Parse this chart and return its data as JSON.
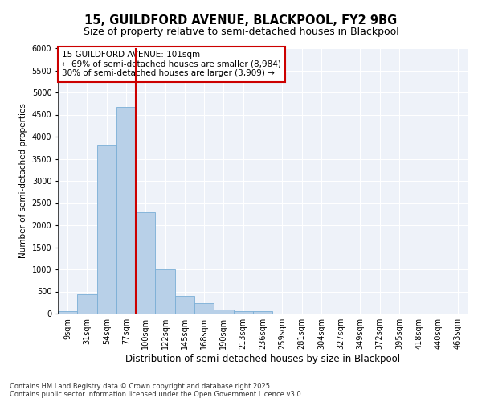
{
  "title1": "15, GUILDFORD AVENUE, BLACKPOOL, FY2 9BG",
  "title2": "Size of property relative to semi-detached houses in Blackpool",
  "xlabel": "Distribution of semi-detached houses by size in Blackpool",
  "ylabel": "Number of semi-detached properties",
  "bin_labels": [
    "9sqm",
    "31sqm",
    "54sqm",
    "77sqm",
    "100sqm",
    "122sqm",
    "145sqm",
    "168sqm",
    "190sqm",
    "213sqm",
    "236sqm",
    "259sqm",
    "281sqm",
    "304sqm",
    "327sqm",
    "349sqm",
    "372sqm",
    "395sqm",
    "418sqm",
    "440sqm",
    "463sqm"
  ],
  "values": [
    50,
    430,
    3820,
    4680,
    2300,
    1000,
    400,
    230,
    85,
    60,
    50,
    0,
    0,
    0,
    0,
    0,
    0,
    0,
    0,
    0,
    0
  ],
  "bar_color": "#b8d0e8",
  "bar_edge_color": "#7aaed6",
  "vline_color": "#cc0000",
  "vline_pos": 4,
  "subject_label": "15 GUILDFORD AVENUE: 101sqm",
  "smaller_label": "← 69% of semi-detached houses are smaller (8,984)",
  "larger_label": "30% of semi-detached houses are larger (3,909) →",
  "box_edge_color": "#cc0000",
  "ylim": [
    0,
    6000
  ],
  "yticks": [
    0,
    500,
    1000,
    1500,
    2000,
    2500,
    3000,
    3500,
    4000,
    4500,
    5000,
    5500,
    6000
  ],
  "bg_color": "#eef2f9",
  "grid_color": "#ffffff",
  "footnote": "Contains HM Land Registry data © Crown copyright and database right 2025.\nContains public sector information licensed under the Open Government Licence v3.0.",
  "title1_fontsize": 10.5,
  "title2_fontsize": 9,
  "xlabel_fontsize": 8.5,
  "ylabel_fontsize": 7.5,
  "tick_fontsize": 7,
  "annot_fontsize": 7.5,
  "footnote_fontsize": 6.0
}
